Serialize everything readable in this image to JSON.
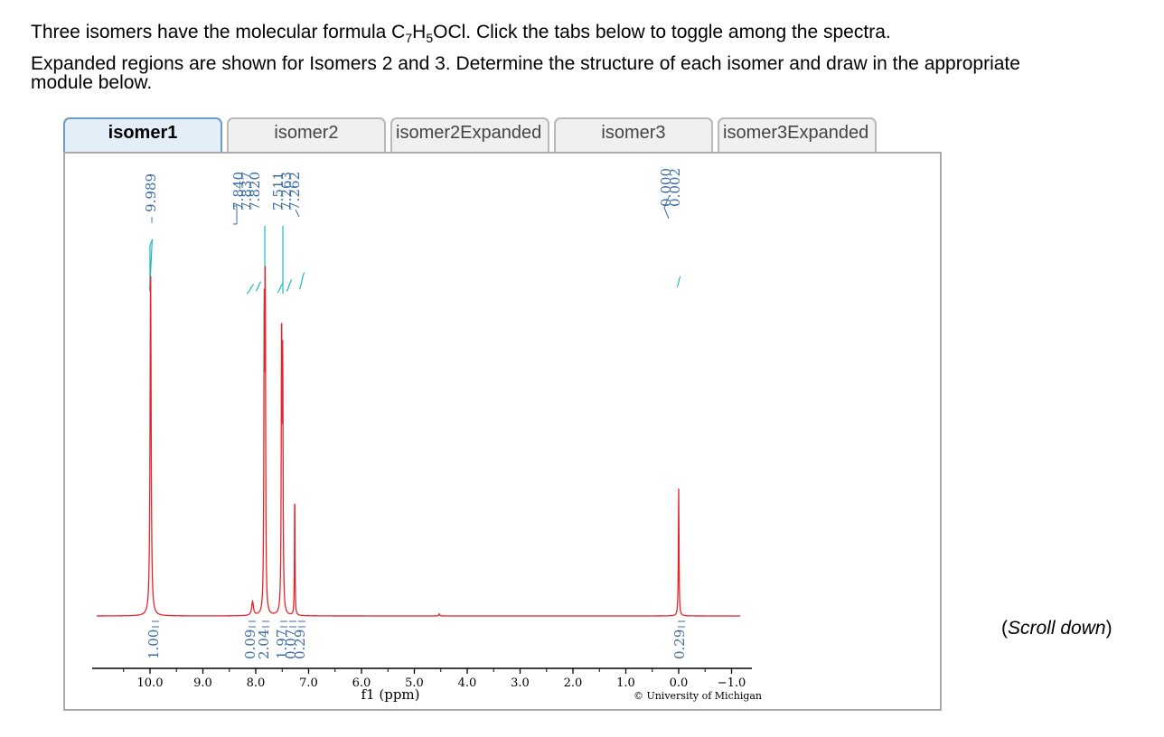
{
  "instructions": {
    "line1_pre": "Three isomers have the molecular formula C",
    "sub1": "7",
    "mid1": "H",
    "sub2": "5",
    "line1_post": "OCl. Click the tabs below to toggle among the spectra.",
    "line2": "Expanded regions are shown for Isomers 2 and 3. Determine the structure of each isomer and draw in the appropriate module below."
  },
  "tabs": [
    {
      "label": "isomer1",
      "active": true
    },
    {
      "label": "isomer2",
      "active": false
    },
    {
      "label": "isomer2Expanded",
      "active": false
    },
    {
      "label": "isomer3",
      "active": false
    },
    {
      "label": "isomer3Expanded",
      "active": false
    }
  ],
  "scroll_hint": {
    "open": "(",
    "text": "Scroll down",
    "close": ")"
  },
  "chart_data": {
    "type": "line",
    "xlabel": "f1 (ppm)",
    "x_reversed": true,
    "xlim": [
      11.0,
      -1.1
    ],
    "x_ticks": [
      {
        "value": 10.0,
        "label": "10.0"
      },
      {
        "value": 9.0,
        "label": "9.0"
      },
      {
        "value": 8.0,
        "label": "8.0"
      },
      {
        "value": 7.0,
        "label": "7.0"
      },
      {
        "value": 6.0,
        "label": "6.0"
      },
      {
        "value": 5.0,
        "label": "5.0"
      },
      {
        "value": 4.0,
        "label": "4.0"
      },
      {
        "value": 3.0,
        "label": "3.0"
      },
      {
        "value": 2.0,
        "label": "2.0"
      },
      {
        "value": 1.0,
        "label": "1.0"
      },
      {
        "value": 0.0,
        "label": "0.0"
      },
      {
        "value": -1.0,
        "label": "−1.0"
      }
    ],
    "spectrum_color": "#e8232a",
    "integral_color": "#1ab8c0",
    "label_color": "#3c6da8",
    "peaks": [
      {
        "ppm": 9.989,
        "height": 1.0,
        "width": 0.012
      },
      {
        "ppm": 8.06,
        "height": 0.04,
        "width": 0.02
      },
      {
        "ppm": 7.84,
        "height": 0.73,
        "width": 0.008
      },
      {
        "ppm": 7.837,
        "height": 0.12,
        "width": 0.008
      },
      {
        "ppm": 7.82,
        "height": 0.88,
        "width": 0.008
      },
      {
        "ppm": 7.511,
        "height": 0.8,
        "width": 0.008
      },
      {
        "ppm": 7.49,
        "height": 0.7,
        "width": 0.008
      },
      {
        "ppm": 7.263,
        "height": 0.31,
        "width": 0.006
      },
      {
        "ppm": 7.262,
        "height": 0.05,
        "width": 0.006
      },
      {
        "ppm": 0.0,
        "height": 0.32,
        "width": 0.007
      },
      {
        "ppm": 0.002,
        "height": 0.05,
        "width": 0.007
      }
    ],
    "peak_labels": [
      {
        "group": 1,
        "values": [
          "9.989"
        ]
      },
      {
        "group": 2,
        "values": [
          "7.840",
          "7.837",
          "7.820",
          "7.511",
          "7.263",
          "7.262"
        ]
      },
      {
        "group": 3,
        "values": [
          "0.000",
          "0.002"
        ]
      }
    ],
    "integrals": [
      {
        "ppm": 9.99,
        "label": "1.00"
      },
      {
        "ppm": 8.06,
        "label": "0.09"
      },
      {
        "ppm": 7.84,
        "label": "2.04"
      },
      {
        "ppm": 7.51,
        "label": "1.97"
      },
      {
        "ppm": 7.4,
        "label": "0.07"
      },
      {
        "ppm": 7.26,
        "label": "0.29"
      },
      {
        "ppm": 0.0,
        "label": "0.29"
      }
    ],
    "copyright": "© University of Michigan"
  }
}
